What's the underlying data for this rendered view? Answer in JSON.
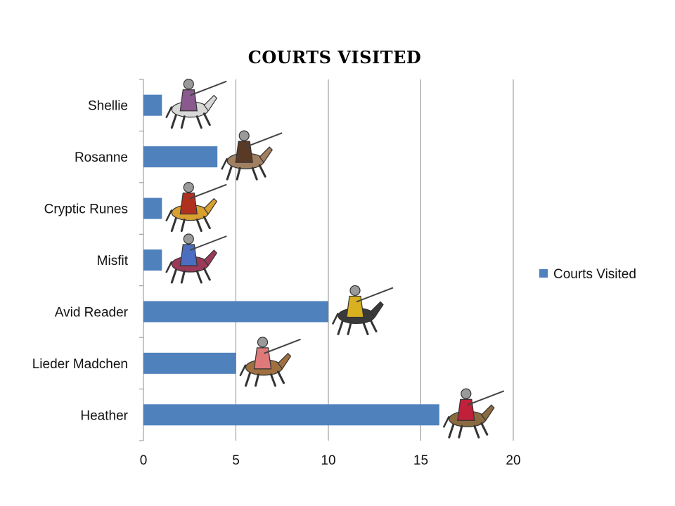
{
  "chart_data": {
    "type": "bar",
    "orientation": "horizontal",
    "title": "COURTS VISITED",
    "categories": [
      "Shellie",
      "Rosanne",
      "Cryptic Runes",
      "Misfit",
      "Avid Reader",
      "Lieder Madchen",
      "Heather"
    ],
    "series": [
      {
        "name": "Courts Visited",
        "values": [
          1,
          4,
          1,
          1,
          10,
          5,
          16
        ]
      }
    ],
    "xlim": [
      0,
      20
    ],
    "xticks": [
      "0",
      "5",
      "10",
      "15",
      "20"
    ],
    "grid": "vertical",
    "legend": "right",
    "bar_color": "#4f81bd",
    "decorations": "knight-on-horse-icon at end of each bar"
  }
}
